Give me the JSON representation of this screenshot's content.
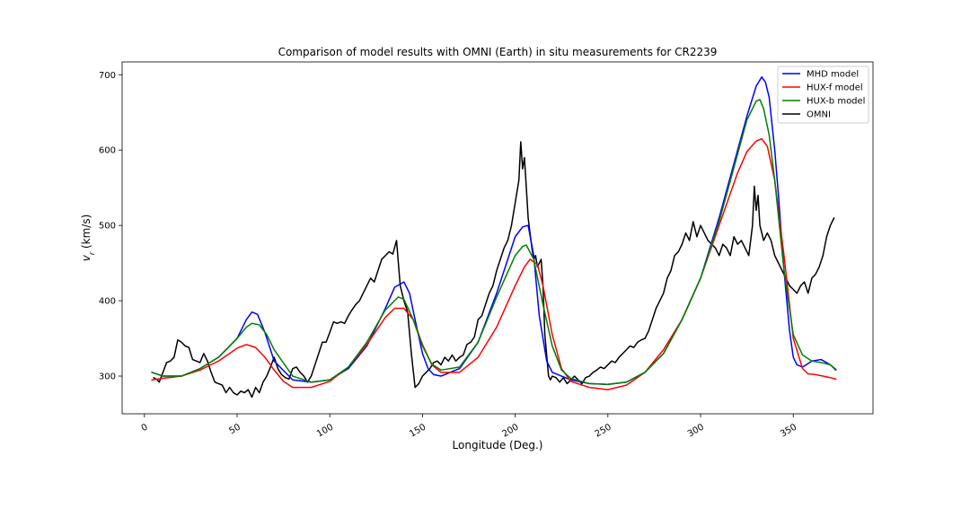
{
  "chart_data": {
    "type": "line",
    "title": "Comparison of model results with OMNI (Earth) in situ measurements for CR2239",
    "xlabel": "Longitude (Deg.)",
    "ylabel": "v_r (km/s)",
    "ylabel_main": "v",
    "ylabel_sub": "r",
    "ylabel_unit": " (km/s)",
    "xlim": [
      -12,
      393
    ],
    "ylim": [
      250,
      717
    ],
    "xticks": [
      0,
      50,
      100,
      150,
      200,
      250,
      300,
      350
    ],
    "yticks": [
      300,
      400,
      500,
      600,
      700
    ],
    "xtick_labels": [
      "0",
      "50",
      "100",
      "150",
      "200",
      "250",
      "300",
      "350"
    ],
    "ytick_labels": [
      "300",
      "400",
      "500",
      "600",
      "700"
    ],
    "legend_position": "top-right",
    "grid": false,
    "series": [
      {
        "name": "MHD model",
        "color": "#0000ff",
        "x": [
          4,
          10,
          20,
          30,
          40,
          50,
          55,
          58,
          61,
          65,
          70,
          80,
          90,
          100,
          110,
          120,
          130,
          135,
          140,
          143,
          146,
          150,
          153,
          156,
          160,
          170,
          180,
          190,
          200,
          204,
          207,
          210,
          213,
          217,
          220,
          225,
          230,
          240,
          250,
          260,
          270,
          280,
          290,
          300,
          310,
          320,
          325,
          330,
          333,
          335,
          337,
          340,
          342,
          345,
          348,
          350,
          352,
          355,
          360,
          365,
          370,
          373
        ],
        "y": [
          305,
          300,
          300,
          310,
          325,
          350,
          375,
          385,
          382,
          358,
          320,
          295,
          292,
          295,
          310,
          340,
          390,
          418,
          425,
          410,
          375,
          330,
          310,
          302,
          300,
          310,
          345,
          410,
          485,
          498,
          500,
          460,
          380,
          320,
          305,
          300,
          295,
          290,
          289,
          292,
          305,
          330,
          375,
          430,
          510,
          600,
          645,
          685,
          697,
          690,
          670,
          600,
          540,
          440,
          360,
          325,
          315,
          312,
          320,
          322,
          315,
          308
        ]
      },
      {
        "name": "HUX-f model",
        "color": "#ff0000",
        "x": [
          4,
          10,
          20,
          30,
          40,
          50,
          55,
          60,
          65,
          70,
          75,
          80,
          90,
          100,
          110,
          120,
          130,
          135,
          140,
          145,
          150,
          155,
          160,
          170,
          180,
          190,
          200,
          205,
          208,
          212,
          215,
          220,
          225,
          230,
          240,
          250,
          260,
          270,
          280,
          290,
          300,
          310,
          320,
          325,
          330,
          333,
          336,
          340,
          345,
          350,
          355,
          358,
          362,
          366,
          370,
          373
        ],
        "y": [
          295,
          297,
          300,
          308,
          320,
          337,
          342,
          338,
          325,
          308,
          293,
          285,
          285,
          293,
          312,
          342,
          378,
          390,
          390,
          375,
          342,
          315,
          305,
          305,
          325,
          365,
          420,
          445,
          455,
          448,
          420,
          355,
          310,
          293,
          285,
          282,
          288,
          305,
          335,
          375,
          430,
          500,
          570,
          598,
          612,
          615,
          605,
          560,
          460,
          350,
          310,
          303,
          302,
          300,
          298,
          296
        ]
      },
      {
        "name": "HUX-b model",
        "color": "#008000",
        "x": [
          4,
          10,
          20,
          30,
          40,
          50,
          55,
          58,
          62,
          66,
          70,
          80,
          90,
          100,
          110,
          120,
          130,
          137,
          140,
          145,
          150,
          155,
          160,
          170,
          180,
          190,
          200,
          204,
          206,
          210,
          215,
          220,
          225,
          230,
          240,
          250,
          260,
          270,
          280,
          290,
          300,
          310,
          320,
          325,
          330,
          332,
          334,
          337,
          340,
          345,
          350,
          355,
          360,
          365,
          370,
          373
        ],
        "y": [
          305,
          300,
          300,
          310,
          325,
          350,
          365,
          370,
          368,
          355,
          335,
          300,
          292,
          295,
          312,
          345,
          388,
          405,
          402,
          375,
          340,
          316,
          308,
          312,
          345,
          405,
          460,
          472,
          474,
          455,
          395,
          340,
          308,
          297,
          290,
          289,
          292,
          305,
          330,
          375,
          430,
          505,
          595,
          640,
          665,
          667,
          655,
          620,
          560,
          440,
          355,
          328,
          320,
          318,
          315,
          309
        ]
      },
      {
        "name": "OMNI",
        "color": "#000000",
        "x": [
          5,
          7,
          8,
          10,
          12,
          14,
          16,
          18,
          20,
          22,
          24,
          26,
          28,
          30,
          32,
          34,
          36,
          38,
          40,
          42,
          44,
          46,
          48,
          50,
          52,
          54,
          56,
          58,
          60,
          62,
          64,
          66,
          68,
          70,
          72,
          74,
          76,
          78,
          80,
          82,
          84,
          86,
          88,
          90,
          92,
          94,
          96,
          98,
          100,
          102,
          104,
          106,
          108,
          110,
          112,
          114,
          116,
          118,
          120,
          122,
          124,
          126,
          128,
          130,
          132,
          134,
          136,
          138,
          140,
          142,
          144,
          146,
          148,
          150,
          152,
          154,
          156,
          158,
          160,
          162,
          164,
          166,
          168,
          170,
          172,
          174,
          176,
          178,
          180,
          182,
          184,
          186,
          188,
          190,
          192,
          194,
          196,
          198,
          200,
          202,
          203,
          204,
          205,
          206,
          207,
          208,
          209,
          210,
          211,
          212,
          213,
          214,
          215,
          216,
          218,
          219,
          220,
          222,
          224,
          226,
          228,
          230,
          232,
          234,
          236,
          238,
          240,
          242,
          244,
          246,
          248,
          250,
          252,
          254,
          256,
          258,
          260,
          262,
          264,
          266,
          268,
          270,
          272,
          274,
          276,
          278,
          280,
          282,
          284,
          286,
          288,
          290,
          292,
          294,
          296,
          298,
          300,
          302,
          304,
          306,
          308,
          310,
          312,
          314,
          316,
          318,
          320,
          322,
          324,
          326,
          328,
          329,
          330,
          331,
          332,
          334,
          336,
          338,
          340,
          342,
          344,
          346,
          348,
          350,
          352,
          354,
          356,
          358,
          360,
          362,
          364,
          366,
          368,
          370,
          372
        ],
        "y": [
          298,
          295,
          292,
          305,
          318,
          320,
          325,
          348,
          345,
          340,
          338,
          322,
          320,
          318,
          330,
          320,
          305,
          292,
          290,
          288,
          278,
          285,
          278,
          275,
          280,
          278,
          282,
          272,
          285,
          278,
          292,
          300,
          312,
          325,
          310,
          302,
          298,
          296,
          310,
          312,
          305,
          300,
          292,
          300,
          315,
          330,
          345,
          345,
          358,
          372,
          370,
          372,
          370,
          380,
          388,
          395,
          400,
          410,
          420,
          430,
          425,
          440,
          455,
          460,
          465,
          462,
          480,
          420,
          400,
          385,
          330,
          285,
          290,
          300,
          305,
          310,
          318,
          320,
          315,
          325,
          320,
          328,
          320,
          325,
          328,
          342,
          345,
          352,
          375,
          380,
          395,
          410,
          420,
          440,
          455,
          470,
          480,
          500,
          530,
          560,
          611,
          575,
          590,
          550,
          510,
          490,
          470,
          455,
          460,
          445,
          450,
          455,
          420,
          355,
          300,
          295,
          300,
          298,
          292,
          298,
          290,
          295,
          300,
          295,
          290,
          298,
          300,
          305,
          308,
          312,
          310,
          315,
          320,
          318,
          325,
          330,
          335,
          340,
          338,
          345,
          348,
          350,
          360,
          375,
          390,
          400,
          410,
          430,
          440,
          460,
          465,
          475,
          490,
          480,
          505,
          485,
          500,
          490,
          480,
          475,
          470,
          460,
          475,
          470,
          460,
          485,
          475,
          480,
          470,
          460,
          500,
          552,
          520,
          540,
          500,
          480,
          490,
          480,
          460,
          450,
          440,
          430,
          420,
          415,
          410,
          420,
          425,
          410,
          430,
          435,
          445,
          460,
          485,
          500,
          510
        ]
      }
    ]
  }
}
